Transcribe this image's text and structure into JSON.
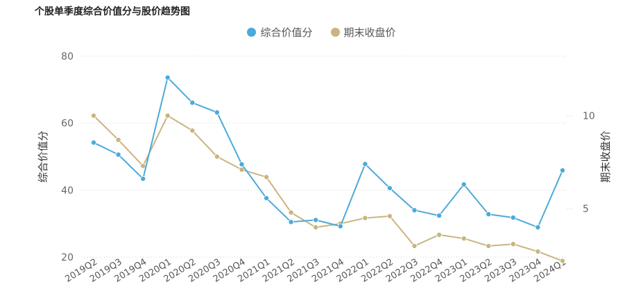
{
  "title": "个股单季度综合价值分与股价趋势图",
  "legend": {
    "left_series": "综合价值分",
    "right_series": "期末收盘价"
  },
  "colors": {
    "left_series": "#4baad9",
    "right_series": "#c8b57f"
  },
  "chart_data": {
    "type": "line",
    "title": "个股单季度综合价值分与股价趋势图",
    "ylabel": "综合价值分",
    "ylabel_right": "期末收盘价",
    "ylim": [
      20,
      80
    ],
    "ylim_right": [
      2.4,
      13.2
    ],
    "yticks": [
      20,
      40,
      60,
      80
    ],
    "yticks_right": [
      5,
      10
    ],
    "grid": true,
    "legend_position": "top-center",
    "categories": [
      "2019Q2",
      "2019Q3",
      "2019Q4",
      "2020Q1",
      "2020Q2",
      "2020Q3",
      "2020Q4",
      "2021Q1",
      "2021Q2",
      "2021Q3",
      "2021Q4",
      "2022Q1",
      "2022Q2",
      "2022Q3",
      "2022Q4",
      "2023Q1",
      "2023Q2",
      "2023Q3",
      "2023Q4",
      "2024Q1"
    ],
    "series": [
      {
        "name": "综合价值分",
        "axis": "left",
        "values": [
          54.2,
          50.6,
          43.4,
          73.6,
          66.1,
          63.2,
          47.7,
          37.6,
          30.5,
          31.1,
          29.2,
          47.8,
          40.6,
          34.0,
          32.4,
          41.7,
          32.8,
          31.8,
          28.9,
          45.9
        ]
      },
      {
        "name": "期末收盘价",
        "axis": "right",
        "values": [
          10.0,
          8.7,
          7.3,
          10.0,
          9.2,
          7.8,
          7.1,
          6.7,
          4.8,
          4.0,
          4.2,
          4.5,
          4.6,
          3.0,
          3.6,
          3.4,
          3.0,
          3.1,
          2.7,
          2.2
        ]
      }
    ]
  }
}
